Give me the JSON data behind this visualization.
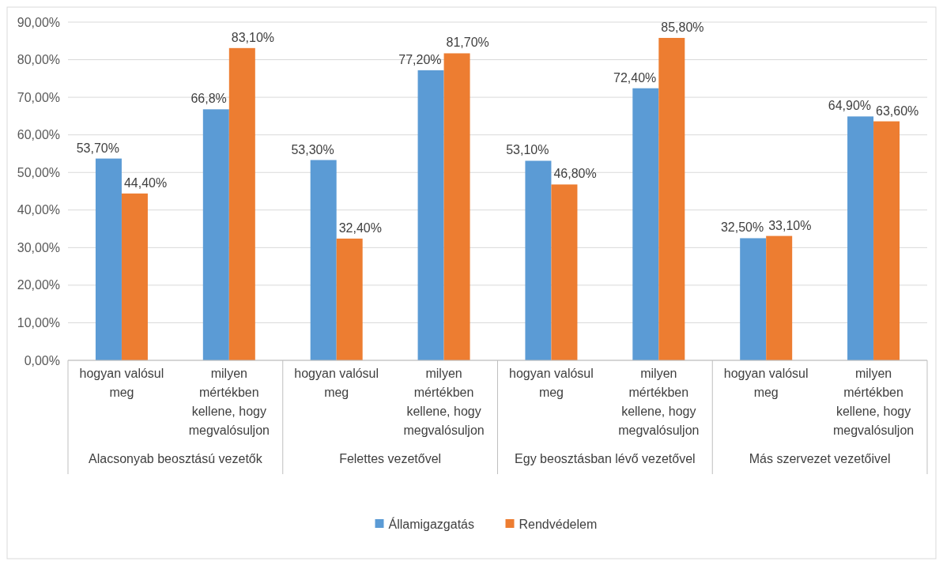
{
  "chart_data": {
    "type": "bar",
    "categories": [
      "hogyan valósul meg",
      "milyen mértékben kellene, hogy megvalósuljon",
      "hogyan valósul meg",
      "milyen mértékben kellene, hogy megvalósuljon",
      "hogyan valósul meg",
      "milyen mértékben kellene, hogy megvalósuljon",
      "hogyan valósul meg",
      "milyen mértékben kellene, hogy megvalósuljon"
    ],
    "series": [
      {
        "name": "Államigazgatás",
        "color": "#5b9bd5",
        "values": [
          53.7,
          66.8,
          53.3,
          77.2,
          53.1,
          72.4,
          32.5,
          64.9
        ],
        "value_labels": [
          "53,70%",
          "66,8%",
          "53,30%",
          "77,20%",
          "53,10%",
          "72,40%",
          "32,50%",
          "64,90%"
        ]
      },
      {
        "name": "Rendvédelem",
        "color": "#ed7d31",
        "values": [
          44.4,
          83.1,
          32.4,
          81.7,
          46.8,
          85.8,
          33.1,
          63.6
        ],
        "value_labels": [
          "44,40%",
          "83,10%",
          "32,40%",
          "81,70%",
          "46,80%",
          "85,80%",
          "33,10%",
          "63,60%"
        ]
      }
    ],
    "annotations": [
      "Alacsonyab beosztású vezetők",
      "Felettes vezetővel",
      "Egy beosztásban lévő vezetővel",
      "Más szervezet vezetőivel"
    ],
    "ylim": [
      0,
      90
    ],
    "yticks": [
      {
        "value": 0,
        "label": "0,00%"
      },
      {
        "value": 10,
        "label": "10,00%"
      },
      {
        "value": 20,
        "label": "20,00%"
      },
      {
        "value": 30,
        "label": "30,00%"
      },
      {
        "value": 40,
        "label": "40,00%"
      },
      {
        "value": 50,
        "label": "50,00%"
      },
      {
        "value": 60,
        "label": "60,00%"
      },
      {
        "value": 70,
        "label": "70,00%"
      },
      {
        "value": 80,
        "label": "80,00%"
      },
      {
        "value": 90,
        "label": "90,00%"
      }
    ],
    "grid": "y",
    "legend": "bottom"
  }
}
